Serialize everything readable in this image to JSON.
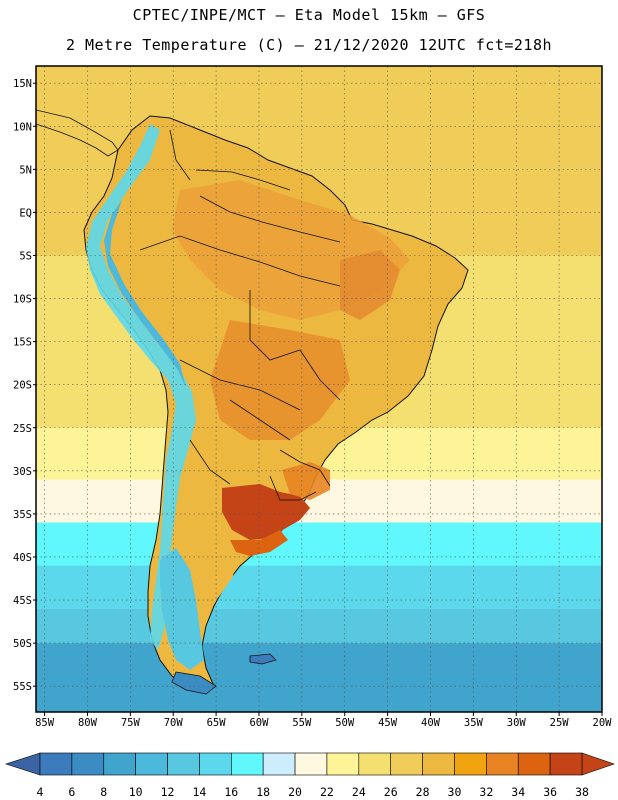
{
  "header": {
    "line1": "CPTEC/INPE/MCT –  Eta Model 15km – GFS",
    "line2": "2 Metre Temperature (C) – 21/12/2020 12UTC fct=218h"
  },
  "map": {
    "projection": "lat-lon",
    "lon_range": [
      -86,
      -20
    ],
    "lat_range": [
      -58,
      17
    ],
    "lat_ticks": [
      {
        "value": 15,
        "label": "15N"
      },
      {
        "value": 10,
        "label": "10N"
      },
      {
        "value": 5,
        "label": "5N"
      },
      {
        "value": 0,
        "label": "EQ"
      },
      {
        "value": -5,
        "label": "5S"
      },
      {
        "value": -10,
        "label": "10S"
      },
      {
        "value": -15,
        "label": "15S"
      },
      {
        "value": -20,
        "label": "20S"
      },
      {
        "value": -25,
        "label": "25S"
      },
      {
        "value": -30,
        "label": "30S"
      },
      {
        "value": -35,
        "label": "35S"
      },
      {
        "value": -40,
        "label": "40S"
      },
      {
        "value": -45,
        "label": "45S"
      },
      {
        "value": -50,
        "label": "50S"
      },
      {
        "value": -55,
        "label": "55S"
      }
    ],
    "lon_ticks": [
      {
        "value": -85,
        "label": "85W"
      },
      {
        "value": -80,
        "label": "80W"
      },
      {
        "value": -75,
        "label": "75W"
      },
      {
        "value": -70,
        "label": "70W"
      },
      {
        "value": -65,
        "label": "65W"
      },
      {
        "value": -60,
        "label": "60W"
      },
      {
        "value": -55,
        "label": "55W"
      },
      {
        "value": -50,
        "label": "50W"
      },
      {
        "value": -45,
        "label": "45W"
      },
      {
        "value": -40,
        "label": "40W"
      },
      {
        "value": -35,
        "label": "35W"
      },
      {
        "value": -30,
        "label": "30W"
      },
      {
        "value": -25,
        "label": "25W"
      },
      {
        "value": -20,
        "label": "20W"
      }
    ],
    "ocean_bands": [
      {
        "lat_top": 17,
        "lat_bottom": 5,
        "temp": 27
      },
      {
        "lat_top": 5,
        "lat_bottom": -5,
        "temp": 27
      },
      {
        "lat_top": -5,
        "lat_bottom": -25,
        "temp": 25
      },
      {
        "lat_top": -25,
        "lat_bottom": -31,
        "temp": 23
      },
      {
        "lat_top": -31,
        "lat_bottom": -36,
        "temp": 21
      },
      {
        "lat_top": -36,
        "lat_bottom": -41,
        "temp": 17
      },
      {
        "lat_top": -41,
        "lat_bottom": -46,
        "temp": 15
      },
      {
        "lat_top": -46,
        "lat_bottom": -50,
        "temp": 13
      },
      {
        "lat_top": -50,
        "lat_bottom": -58,
        "temp": 9
      }
    ]
  },
  "colorbar": {
    "colors": [
      "#3c7cbc",
      "#3c8cc4",
      "#40a4cc",
      "#4cb8dc",
      "#58c8e0",
      "#5cd8ec",
      "#60f8fc",
      "#cceefc",
      "#fff8e0",
      "#fcf496",
      "#f4e070",
      "#f0cc58",
      "#ecb840",
      "#f0a410",
      "#e88424",
      "#dc6410",
      "#c44418"
    ],
    "end_low_color": "#3c64a4",
    "end_high_color": "#c44418",
    "tick_labels": [
      "4",
      "6",
      "8",
      "10",
      "12",
      "14",
      "16",
      "18",
      "20",
      "22",
      "24",
      "26",
      "28",
      "30",
      "32",
      "34",
      "36",
      "38"
    ]
  }
}
